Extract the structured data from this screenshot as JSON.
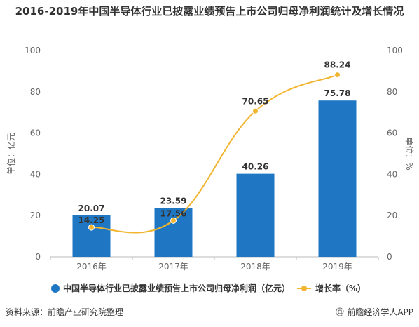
{
  "title": "2016-2019年中国半导体行业已披露业绩预告上市公司归母净利润统计及增长情况",
  "footer": {
    "source": "资料来源：前瞻产业研究院整理",
    "brand": "前瞻经济学人APP"
  },
  "chart_data": {
    "type": "bar",
    "categories": [
      "2016年",
      "2017年",
      "2018年",
      "2019年"
    ],
    "series": [
      {
        "name": "中国半导体行业已披露业绩预告上市公司归母净利润（亿元）",
        "type": "bar",
        "axis": "left",
        "color": "#1f77c4",
        "values": [
          20.07,
          23.59,
          40.26,
          75.78
        ],
        "labels": [
          "20.07",
          "23.59",
          "40.26",
          "75.78"
        ]
      },
      {
        "name": "增长率（%）",
        "type": "line",
        "axis": "right",
        "color": "#f2b530",
        "values": [
          14.25,
          17.56,
          70.65,
          88.24
        ],
        "labels": [
          "14.25",
          "17.56",
          "70.65",
          "88.24"
        ]
      }
    ],
    "ylabel_left": "单位：亿元",
    "ylabel_right": "单位：%",
    "ylim_left": [
      0,
      100
    ],
    "ylim_right": [
      0,
      100
    ],
    "yticks": [
      "0",
      "20",
      "40",
      "60",
      "80",
      "100"
    ],
    "legend_position": "bottom",
    "grid": false
  }
}
